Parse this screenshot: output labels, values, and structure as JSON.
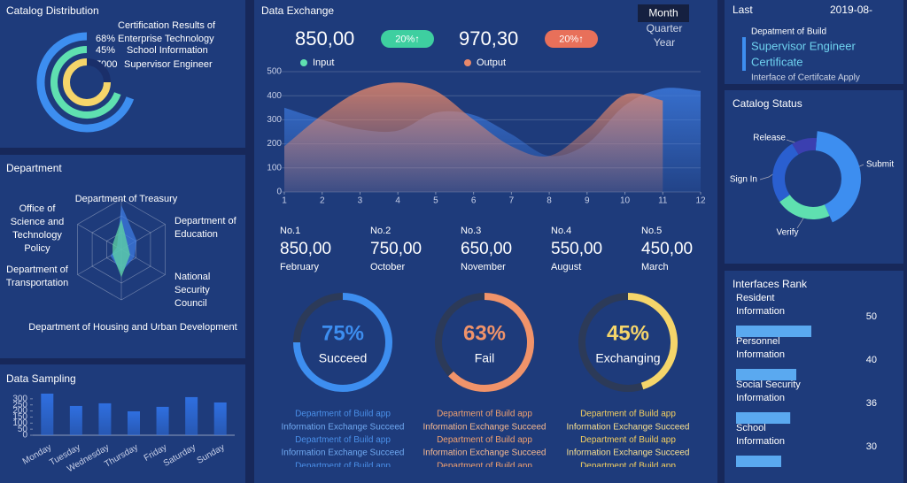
{
  "catalog_distribution": {
    "title": "Catalog Distribution",
    "items": [
      {
        "value": "68%",
        "label": "Certification Results of Enterprise Technology"
      },
      {
        "value": "45%",
        "label": "School Information"
      },
      {
        "value": "7000",
        "label": "Supervisor Engineer"
      }
    ]
  },
  "department": {
    "title": "Department"
  },
  "exchange": {
    "summary": [
      {
        "value": "850,00",
        "change": "20%↑"
      },
      {
        "value": "970,30",
        "change": "20%↑"
      }
    ],
    "periods": [
      "Month",
      "Quarter",
      "Year"
    ],
    "ranking": [
      {
        "rank": "No.1",
        "value": "850,00",
        "month": "February"
      },
      {
        "rank": "No.2",
        "value": "750,00",
        "month": "October"
      },
      {
        "rank": "No.3",
        "value": "650,00",
        "month": "November"
      },
      {
        "rank": "No.4",
        "value": "550,00",
        "month": "August"
      },
      {
        "rank": "No.5",
        "value": "450,00",
        "month": "March"
      }
    ],
    "lists": [
      [
        "Department of Build app",
        "Information Exchange Succeed",
        "Department of Build app",
        "Information Exchange Succeed",
        "Department of Build app"
      ],
      [
        "Department of Build app",
        "Information Exchange Succeed",
        "Department of Build app",
        "Information Exchange Succeed",
        "Department of Build app"
      ],
      [
        "Department of Build app",
        "Information Exchange Succeed",
        "Department of Build app",
        "Information Exchange Succeed",
        "Department of Build app"
      ]
    ]
  },
  "info": {
    "last": "Last",
    "date": "2019-08-",
    "department": "Depatment of Build",
    "role": "Supervisor Engineer",
    "document": "Certificate",
    "interface": "Interface of Certifcate Apply"
  },
  "chart_data": [
    {
      "type": "radar",
      "categories": [
        "Department of Treasury",
        "Department of Education",
        "National Security Council",
        "Department of Housing and Urban Development",
        "Department of Transportation",
        "Office of Science and Technology Policy"
      ],
      "ylim": [
        0,
        100
      ],
      "series": [
        {
          "color": "#3d7be0",
          "values": [
            88,
            35,
            30,
            45,
            25,
            10
          ]
        },
        {
          "color": "#5fd6a4",
          "values": [
            60,
            15,
            20,
            55,
            20,
            20
          ]
        }
      ]
    },
    {
      "type": "bar",
      "title": "Data Sampling",
      "categories": [
        "Monday",
        "Tuesday",
        "Wednesday",
        "Thursday",
        "Friday",
        "Saturday",
        "Sunday"
      ],
      "values": [
        343,
        241,
        263,
        197,
        234,
        314,
        270
      ],
      "color": "#2f6fe0",
      "ylim": [
        0,
        350
      ],
      "yticks": [
        0,
        50,
        100,
        150,
        200,
        250,
        300
      ]
    },
    {
      "type": "area",
      "title": "Data Exchange",
      "x": [
        1,
        2,
        3,
        4,
        5,
        6,
        7,
        8,
        9,
        10,
        11,
        12
      ],
      "xlim": [
        1,
        12
      ],
      "xticks": [
        1,
        2,
        3,
        4,
        5,
        6,
        7,
        8,
        9,
        10,
        11,
        12
      ],
      "ylim": [
        0,
        500
      ],
      "yticks": [
        0,
        100,
        200,
        300,
        400,
        500
      ],
      "grid": true,
      "series": [
        {
          "name": "Input",
          "color": "#3d7be0",
          "values": [
            350,
            300,
            260,
            255,
            330,
            320,
            240,
            150,
            200,
            360,
            430,
            420
          ]
        },
        {
          "name": "Output",
          "color": "#e8886a",
          "values": [
            190,
            320,
            420,
            455,
            420,
            300,
            190,
            150,
            260,
            405,
            380,
            null
          ]
        }
      ]
    },
    {
      "type": "gauge",
      "categories": [
        "Succeed",
        "Fail",
        "Exchanging"
      ],
      "values": [
        75,
        63,
        45
      ],
      "value_labels": [
        "75%",
        "63%",
        "45%"
      ],
      "colors": [
        "#3d8ef0",
        "#f0936a",
        "#f5d56a"
      ]
    },
    {
      "type": "donut",
      "title": "Catalog Status",
      "categories": [
        "Submit",
        "Verify",
        "Sign In",
        "Release"
      ],
      "values": [
        42,
        22,
        26,
        10
      ],
      "colors": [
        "#3d8ef0",
        "#5fe0b0",
        "#2a5fd0",
        "#3b3fb0"
      ]
    },
    {
      "type": "hbar",
      "title": "Interfaces Rank",
      "categories": [
        "Resident Information",
        "Personnel Information",
        "Social Security Information",
        "School Information"
      ],
      "values": [
        50,
        40,
        36,
        30
      ],
      "color": "#5aa9f0"
    }
  ]
}
